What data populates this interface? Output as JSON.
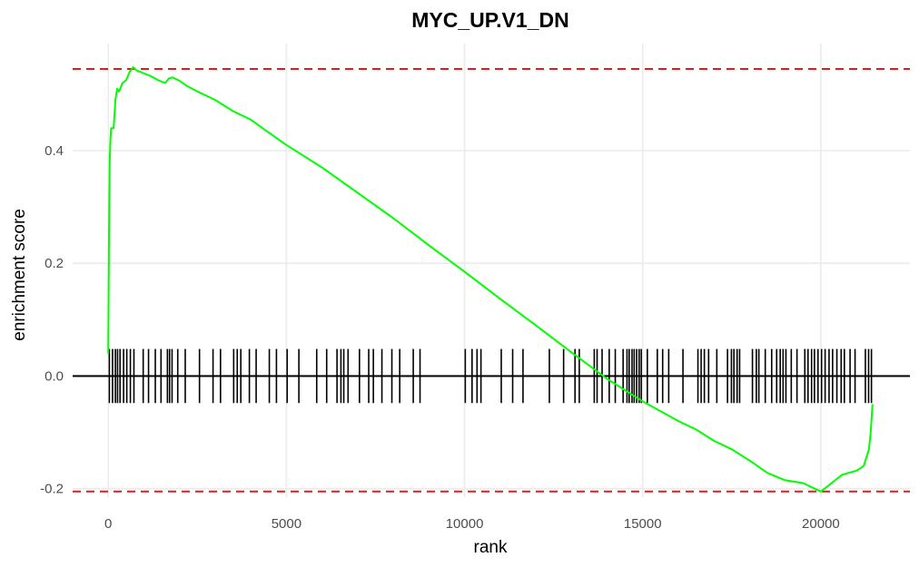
{
  "chart_data": {
    "type": "line",
    "title": "MYC_UP.V1_DN",
    "xlabel": "rank",
    "ylabel": "enrichment score",
    "xlim": [
      -1000,
      22500
    ],
    "ylim": [
      -0.215,
      0.59
    ],
    "x_ticks": [
      0,
      5000,
      10000,
      15000,
      20000
    ],
    "x_tick_labels": [
      "0",
      "5000",
      "10000",
      "15000",
      "20000"
    ],
    "y_ticks": [
      -0.2,
      0.0,
      0.2,
      0.4
    ],
    "y_tick_labels": [
      "-0.2",
      "0.0",
      "0.2",
      "0.4"
    ],
    "grid": true,
    "legend": "none",
    "colors": {
      "curve": "#00ff00",
      "bounds": "#e41a1c",
      "hits": "#000000",
      "grid": "#ebebeb"
    },
    "reference_lines": {
      "max_es": 0.545,
      "min_es": -0.205,
      "zero": 0.0
    },
    "hit_tick_height": 0.048,
    "series": [
      {
        "x": [
          0,
          20,
          40,
          60,
          80,
          100,
          150,
          200,
          250,
          300,
          400,
          500,
          600,
          700,
          800,
          900,
          1000,
          1200,
          1400,
          1600,
          1700,
          1800,
          1900,
          2000,
          2200,
          2500,
          3000,
          3500,
          4000,
          4500,
          5000,
          6000,
          7000,
          8000,
          9000,
          10000,
          11000,
          12000,
          13000,
          14000,
          15000,
          16000,
          16500,
          17000,
          17500,
          18000,
          18500,
          19000,
          19500,
          20000,
          20300,
          20600,
          21000,
          21200,
          21350,
          21400,
          21450
        ],
        "y": [
          0.04,
          0.25,
          0.38,
          0.42,
          0.44,
          0.44,
          0.44,
          0.49,
          0.51,
          0.505,
          0.52,
          0.525,
          0.54,
          0.548,
          0.542,
          0.54,
          0.537,
          0.532,
          0.525,
          0.52,
          0.528,
          0.53,
          0.527,
          0.524,
          0.515,
          0.505,
          0.49,
          0.47,
          0.455,
          0.432,
          0.41,
          0.37,
          0.325,
          0.28,
          0.232,
          0.185,
          0.137,
          0.09,
          0.042,
          -0.005,
          -0.045,
          -0.08,
          -0.095,
          -0.115,
          -0.13,
          -0.15,
          -0.172,
          -0.185,
          -0.19,
          -0.205,
          -0.19,
          -0.175,
          -0.168,
          -0.16,
          -0.13,
          -0.1,
          -0.05
        ]
      }
    ],
    "hits": [
      30,
      120,
      200,
      260,
      330,
      430,
      520,
      620,
      720,
      980,
      1130,
      1320,
      1480,
      1660,
      1720,
      1790,
      1950,
      2160,
      2560,
      2940,
      3150,
      3520,
      3620,
      3720,
      3960,
      4150,
      4520,
      4720,
      5020,
      5350,
      5850,
      6130,
      6420,
      6530,
      6610,
      6730,
      7050,
      7310,
      7440,
      7680,
      7960,
      8180,
      8560,
      8750,
      10020,
      10210,
      10350,
      10460,
      11030,
      11350,
      11640,
      12380,
      12780,
      13100,
      13220,
      13640,
      13720,
      13860,
      14060,
      14230,
      14450,
      14560,
      14620,
      14700,
      14760,
      14830,
      14900,
      14960,
      15130,
      15410,
      15560,
      15730,
      16130,
      16550,
      16640,
      16730,
      16850,
      17080,
      17380,
      17490,
      17560,
      17650,
      17720,
      18080,
      18190,
      18260,
      18440,
      18620,
      18760,
      18860,
      18940,
      19020,
      19170,
      19330,
      19550,
      19640,
      19740,
      19820,
      19920,
      20020,
      20120,
      20230,
      20330,
      20450,
      20570,
      20660,
      20820,
      20960,
      21250,
      21340,
      21420
    ]
  }
}
